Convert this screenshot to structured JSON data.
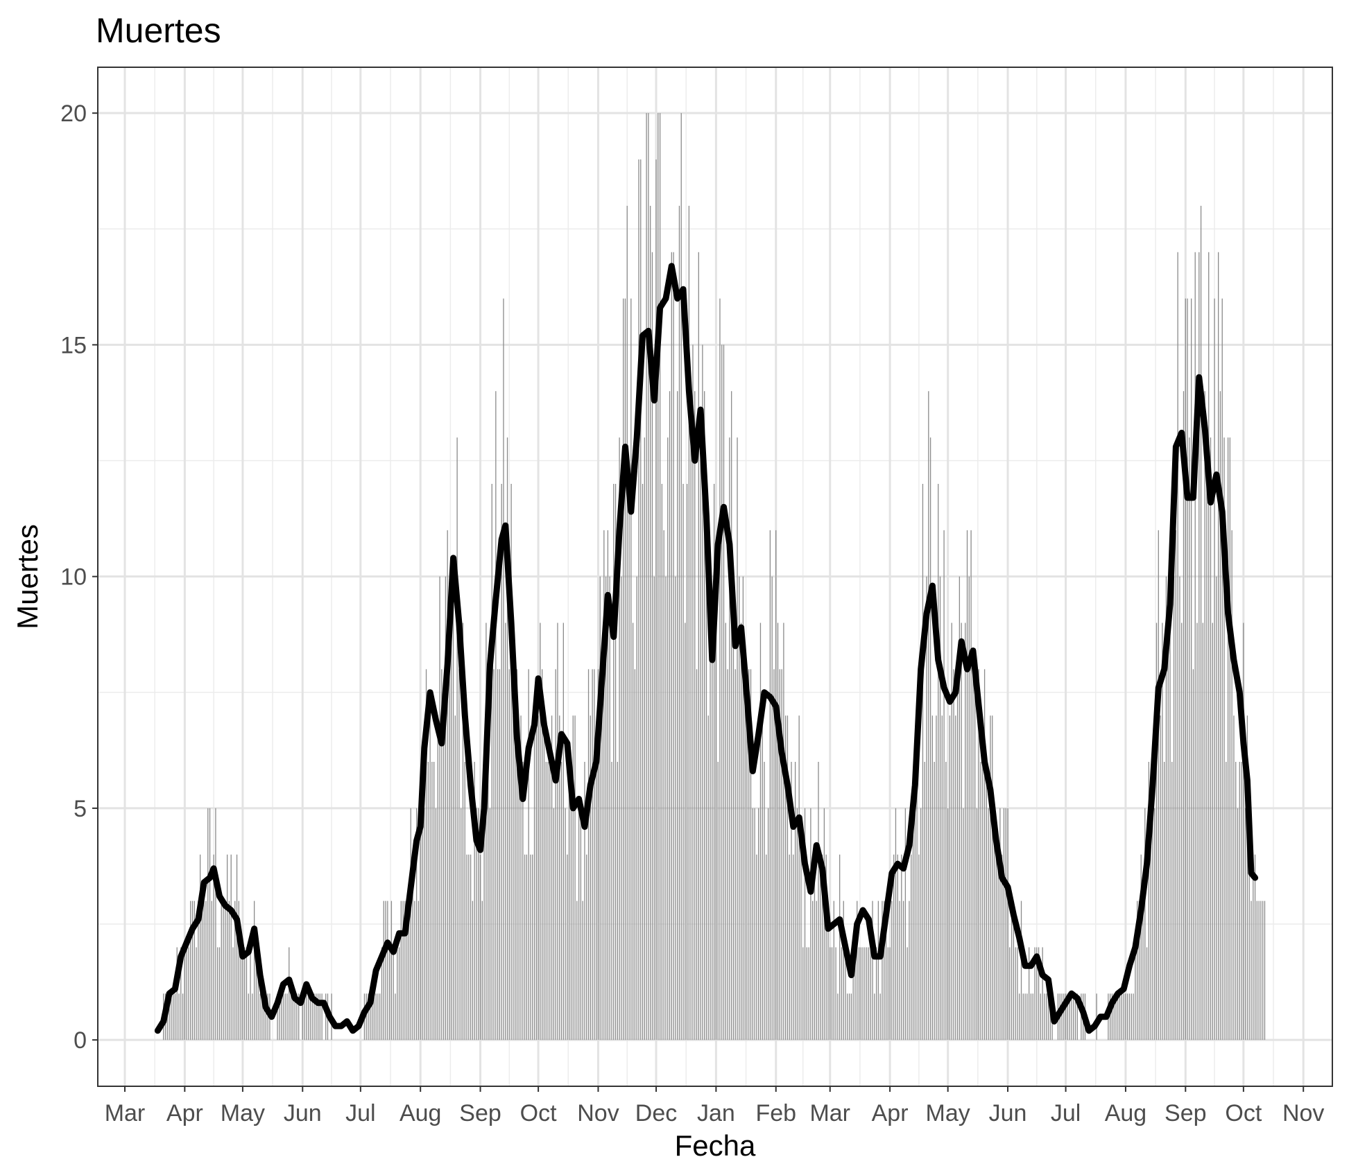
{
  "title": "Muertes",
  "chart_data": {
    "type": "bar",
    "title": "Muertes",
    "xlabel": "Fecha",
    "ylabel": "Muertes",
    "ylim": [
      -1,
      20.99
    ],
    "xlim": [
      "2020-02-16",
      "2021-11-16"
    ],
    "grid": true,
    "y_ticks": [
      0,
      5,
      10,
      15,
      20
    ],
    "x_ticks": [
      {
        "date": "2020-03-01",
        "label": "Mar"
      },
      {
        "date": "2020-04-01",
        "label": "Apr"
      },
      {
        "date": "2020-05-01",
        "label": "May"
      },
      {
        "date": "2020-06-01",
        "label": "Jun"
      },
      {
        "date": "2020-07-01",
        "label": "Jul"
      },
      {
        "date": "2020-08-01",
        "label": "Aug"
      },
      {
        "date": "2020-09-01",
        "label": "Sep"
      },
      {
        "date": "2020-10-01",
        "label": "Oct"
      },
      {
        "date": "2020-11-01",
        "label": "Nov"
      },
      {
        "date": "2020-12-01",
        "label": "Dec"
      },
      {
        "date": "2021-01-01",
        "label": "Jan"
      },
      {
        "date": "2021-02-01",
        "label": "Feb"
      },
      {
        "date": "2021-03-01",
        "label": "Mar"
      },
      {
        "date": "2021-04-01",
        "label": "Apr"
      },
      {
        "date": "2021-05-01",
        "label": "May"
      },
      {
        "date": "2021-06-01",
        "label": "Jun"
      },
      {
        "date": "2021-07-01",
        "label": "Jul"
      },
      {
        "date": "2021-08-01",
        "label": "Aug"
      },
      {
        "date": "2021-09-01",
        "label": "Sep"
      },
      {
        "date": "2021-10-01",
        "label": "Oct"
      },
      {
        "date": "2021-11-01",
        "label": "Nov"
      }
    ],
    "series": [
      {
        "type": "line",
        "points": [
          [
            "2020-03-18",
            0.2
          ],
          [
            "2020-03-21",
            0.4
          ],
          [
            "2020-03-24",
            1.0
          ],
          [
            "2020-03-27",
            1.1
          ],
          [
            "2020-03-30",
            1.8
          ],
          [
            "2020-04-02",
            2.1
          ],
          [
            "2020-04-05",
            2.4
          ],
          [
            "2020-04-08",
            2.6
          ],
          [
            "2020-04-11",
            3.4
          ],
          [
            "2020-04-14",
            3.5
          ],
          [
            "2020-04-16",
            3.7
          ],
          [
            "2020-04-19",
            3.1
          ],
          [
            "2020-04-22",
            2.9
          ],
          [
            "2020-04-25",
            2.8
          ],
          [
            "2020-04-28",
            2.6
          ],
          [
            "2020-05-01",
            1.8
          ],
          [
            "2020-05-04",
            1.9
          ],
          [
            "2020-05-07",
            2.4
          ],
          [
            "2020-05-10",
            1.4
          ],
          [
            "2020-05-13",
            0.7
          ],
          [
            "2020-05-16",
            0.5
          ],
          [
            "2020-05-19",
            0.8
          ],
          [
            "2020-05-22",
            1.2
          ],
          [
            "2020-05-25",
            1.3
          ],
          [
            "2020-05-28",
            0.9
          ],
          [
            "2020-05-31",
            0.8
          ],
          [
            "2020-06-03",
            1.2
          ],
          [
            "2020-06-06",
            0.9
          ],
          [
            "2020-06-09",
            0.8
          ],
          [
            "2020-06-12",
            0.8
          ],
          [
            "2020-06-15",
            0.5
          ],
          [
            "2020-06-18",
            0.3
          ],
          [
            "2020-06-21",
            0.3
          ],
          [
            "2020-06-24",
            0.4
          ],
          [
            "2020-06-27",
            0.2
          ],
          [
            "2020-06-30",
            0.3
          ],
          [
            "2020-07-03",
            0.6
          ],
          [
            "2020-07-06",
            0.8
          ],
          [
            "2020-07-09",
            1.5
          ],
          [
            "2020-07-12",
            1.8
          ],
          [
            "2020-07-15",
            2.1
          ],
          [
            "2020-07-18",
            1.9
          ],
          [
            "2020-07-21",
            2.3
          ],
          [
            "2020-07-24",
            2.3
          ],
          [
            "2020-07-27",
            3.3
          ],
          [
            "2020-07-30",
            4.3
          ],
          [
            "2020-08-01",
            4.6
          ],
          [
            "2020-08-03",
            6.3
          ],
          [
            "2020-08-06",
            7.5
          ],
          [
            "2020-08-09",
            6.9
          ],
          [
            "2020-08-12",
            6.4
          ],
          [
            "2020-08-15",
            8.1
          ],
          [
            "2020-08-18",
            10.4
          ],
          [
            "2020-08-21",
            9.0
          ],
          [
            "2020-08-24",
            7.0
          ],
          [
            "2020-08-27",
            5.5
          ],
          [
            "2020-08-30",
            4.3
          ],
          [
            "2020-09-01",
            4.1
          ],
          [
            "2020-09-03",
            5.0
          ],
          [
            "2020-09-06",
            8.1
          ],
          [
            "2020-09-09",
            9.5
          ],
          [
            "2020-09-12",
            10.8
          ],
          [
            "2020-09-14",
            11.1
          ],
          [
            "2020-09-17",
            9.0
          ],
          [
            "2020-09-20",
            6.5
          ],
          [
            "2020-09-23",
            5.2
          ],
          [
            "2020-09-26",
            6.3
          ],
          [
            "2020-09-29",
            6.8
          ],
          [
            "2020-10-01",
            7.8
          ],
          [
            "2020-10-04",
            6.8
          ],
          [
            "2020-10-07",
            6.2
          ],
          [
            "2020-10-10",
            5.6
          ],
          [
            "2020-10-13",
            6.6
          ],
          [
            "2020-10-16",
            6.4
          ],
          [
            "2020-10-19",
            5.0
          ],
          [
            "2020-10-22",
            5.2
          ],
          [
            "2020-10-25",
            4.6
          ],
          [
            "2020-10-28",
            5.5
          ],
          [
            "2020-10-31",
            6.0
          ],
          [
            "2020-11-03",
            7.8
          ],
          [
            "2020-11-06",
            9.6
          ],
          [
            "2020-11-09",
            8.7
          ],
          [
            "2020-11-12",
            11.0
          ],
          [
            "2020-11-15",
            12.8
          ],
          [
            "2020-11-18",
            11.4
          ],
          [
            "2020-11-21",
            13.0
          ],
          [
            "2020-11-24",
            15.2
          ],
          [
            "2020-11-27",
            15.3
          ],
          [
            "2020-11-30",
            13.8
          ],
          [
            "2020-12-03",
            15.8
          ],
          [
            "2020-12-06",
            16.0
          ],
          [
            "2020-12-09",
            16.7
          ],
          [
            "2020-12-12",
            16.0
          ],
          [
            "2020-12-15",
            16.2
          ],
          [
            "2020-12-18",
            14.0
          ],
          [
            "2020-12-21",
            12.5
          ],
          [
            "2020-12-24",
            13.6
          ],
          [
            "2020-12-27",
            11.3
          ],
          [
            "2020-12-30",
            8.2
          ],
          [
            "2021-01-02",
            10.7
          ],
          [
            "2021-01-05",
            11.5
          ],
          [
            "2021-01-08",
            10.7
          ],
          [
            "2021-01-11",
            8.5
          ],
          [
            "2021-01-14",
            8.9
          ],
          [
            "2021-01-17",
            7.4
          ],
          [
            "2021-01-20",
            5.8
          ],
          [
            "2021-01-23",
            6.6
          ],
          [
            "2021-01-26",
            7.5
          ],
          [
            "2021-01-29",
            7.4
          ],
          [
            "2021-02-01",
            7.2
          ],
          [
            "2021-02-04",
            6.2
          ],
          [
            "2021-02-07",
            5.5
          ],
          [
            "2021-02-10",
            4.6
          ],
          [
            "2021-02-13",
            4.8
          ],
          [
            "2021-02-16",
            3.8
          ],
          [
            "2021-02-19",
            3.2
          ],
          [
            "2021-02-22",
            4.2
          ],
          [
            "2021-02-25",
            3.7
          ],
          [
            "2021-02-28",
            2.4
          ],
          [
            "2021-03-03",
            2.5
          ],
          [
            "2021-03-06",
            2.6
          ],
          [
            "2021-03-09",
            2.0
          ],
          [
            "2021-03-12",
            1.4
          ],
          [
            "2021-03-15",
            2.5
          ],
          [
            "2021-03-18",
            2.8
          ],
          [
            "2021-03-21",
            2.6
          ],
          [
            "2021-03-24",
            1.8
          ],
          [
            "2021-03-27",
            1.8
          ],
          [
            "2021-03-30",
            2.7
          ],
          [
            "2021-04-02",
            3.6
          ],
          [
            "2021-04-05",
            3.8
          ],
          [
            "2021-04-08",
            3.7
          ],
          [
            "2021-04-11",
            4.2
          ],
          [
            "2021-04-14",
            5.5
          ],
          [
            "2021-04-17",
            8.0
          ],
          [
            "2021-04-20",
            9.2
          ],
          [
            "2021-04-23",
            9.8
          ],
          [
            "2021-04-26",
            8.2
          ],
          [
            "2021-04-29",
            7.6
          ],
          [
            "2021-05-02",
            7.3
          ],
          [
            "2021-05-05",
            7.5
          ],
          [
            "2021-05-08",
            8.6
          ],
          [
            "2021-05-11",
            8.0
          ],
          [
            "2021-05-14",
            8.4
          ],
          [
            "2021-05-17",
            7.2
          ],
          [
            "2021-05-20",
            6.0
          ],
          [
            "2021-05-23",
            5.4
          ],
          [
            "2021-05-26",
            4.3
          ],
          [
            "2021-05-29",
            3.5
          ],
          [
            "2021-06-01",
            3.3
          ],
          [
            "2021-06-04",
            2.7
          ],
          [
            "2021-06-07",
            2.2
          ],
          [
            "2021-06-10",
            1.6
          ],
          [
            "2021-06-13",
            1.6
          ],
          [
            "2021-06-16",
            1.8
          ],
          [
            "2021-06-19",
            1.4
          ],
          [
            "2021-06-22",
            1.3
          ],
          [
            "2021-06-25",
            0.4
          ],
          [
            "2021-06-28",
            0.6
          ],
          [
            "2021-07-01",
            0.8
          ],
          [
            "2021-07-04",
            1.0
          ],
          [
            "2021-07-07",
            0.9
          ],
          [
            "2021-07-10",
            0.6
          ],
          [
            "2021-07-13",
            0.2
          ],
          [
            "2021-07-16",
            0.3
          ],
          [
            "2021-07-19",
            0.5
          ],
          [
            "2021-07-22",
            0.5
          ],
          [
            "2021-07-25",
            0.8
          ],
          [
            "2021-07-28",
            1.0
          ],
          [
            "2021-07-31",
            1.1
          ],
          [
            "2021-08-03",
            1.6
          ],
          [
            "2021-08-06",
            2.0
          ],
          [
            "2021-08-09",
            2.8
          ],
          [
            "2021-08-12",
            3.8
          ],
          [
            "2021-08-15",
            5.5
          ],
          [
            "2021-08-18",
            7.6
          ],
          [
            "2021-08-21",
            8.0
          ],
          [
            "2021-08-24",
            9.4
          ],
          [
            "2021-08-27",
            12.8
          ],
          [
            "2021-08-30",
            13.1
          ],
          [
            "2021-09-02",
            11.7
          ],
          [
            "2021-09-05",
            11.7
          ],
          [
            "2021-09-08",
            14.3
          ],
          [
            "2021-09-11",
            13.2
          ],
          [
            "2021-09-14",
            11.6
          ],
          [
            "2021-09-17",
            12.2
          ],
          [
            "2021-09-20",
            11.4
          ],
          [
            "2021-09-23",
            9.2
          ],
          [
            "2021-09-26",
            8.2
          ],
          [
            "2021-09-29",
            7.5
          ],
          [
            "2021-10-01",
            6.4
          ],
          [
            "2021-10-03",
            5.6
          ],
          [
            "2021-10-05",
            3.6
          ],
          [
            "2021-10-07",
            3.5
          ]
        ]
      }
    ]
  }
}
